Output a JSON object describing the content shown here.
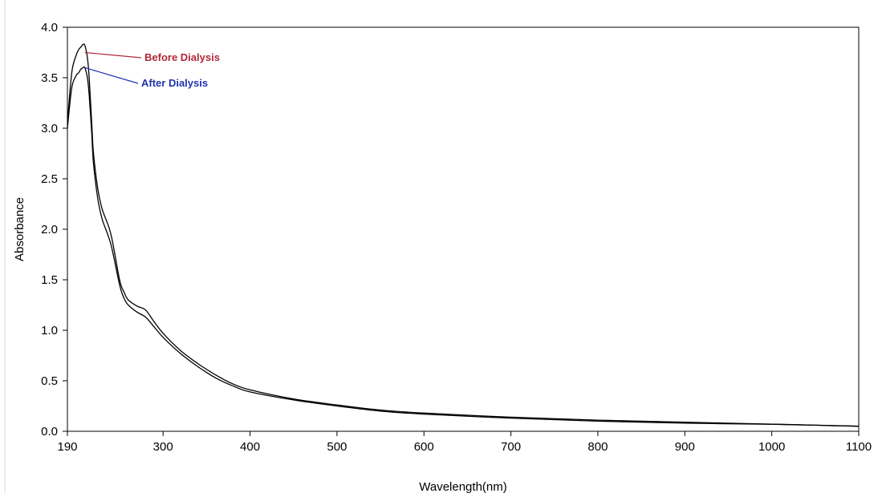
{
  "chart_data": {
    "type": "line",
    "xlabel": "Wavelength(nm)",
    "ylabel": "Absorbance",
    "xlim": [
      190,
      1100
    ],
    "ylim": [
      0.0,
      4.0
    ],
    "x_ticks": [
      190,
      300,
      400,
      500,
      600,
      700,
      800,
      900,
      1000,
      1100
    ],
    "y_ticks": [
      "0.0",
      "0.5",
      "1.0",
      "1.5",
      "2.0",
      "2.5",
      "3.0",
      "3.5",
      "4.0"
    ],
    "grid": false,
    "line_color": "#000000",
    "series": [
      {
        "name": "Before Dialysis",
        "color": "#b0283a",
        "x": [
          190,
          195,
          200,
          203,
          205,
          208,
          210,
          213,
          215,
          218,
          220,
          225,
          230,
          240,
          250,
          255,
          260,
          270,
          280,
          290,
          300,
          320,
          340,
          360,
          380,
          400,
          450,
          500,
          550,
          600,
          700,
          800,
          900,
          1000,
          1050,
          1100
        ],
        "y": [
          3.05,
          3.55,
          3.72,
          3.78,
          3.8,
          3.83,
          3.82,
          3.7,
          3.5,
          3.05,
          2.75,
          2.4,
          2.2,
          1.95,
          1.5,
          1.38,
          1.3,
          1.24,
          1.2,
          1.08,
          0.97,
          0.8,
          0.67,
          0.56,
          0.47,
          0.41,
          0.32,
          0.26,
          0.21,
          0.18,
          0.14,
          0.11,
          0.09,
          0.07,
          0.06,
          0.05
        ]
      },
      {
        "name": "After Dialysis",
        "color": "#1f33b0",
        "x": [
          190,
          195,
          200,
          203,
          205,
          208,
          210,
          213,
          215,
          218,
          220,
          225,
          230,
          240,
          250,
          255,
          260,
          270,
          280,
          290,
          300,
          320,
          340,
          360,
          380,
          400,
          450,
          500,
          550,
          600,
          700,
          800,
          900,
          1000,
          1050,
          1100
        ],
        "y": [
          3.0,
          3.4,
          3.52,
          3.55,
          3.58,
          3.6,
          3.6,
          3.5,
          3.33,
          2.95,
          2.65,
          2.3,
          2.1,
          1.85,
          1.45,
          1.32,
          1.25,
          1.18,
          1.13,
          1.03,
          0.93,
          0.77,
          0.64,
          0.53,
          0.45,
          0.39,
          0.31,
          0.25,
          0.2,
          0.17,
          0.13,
          0.1,
          0.08,
          0.07,
          0.06,
          0.05
        ]
      }
    ],
    "annotations": [
      {
        "text": "Before Dialysis",
        "series": 0,
        "point_x": 210,
        "point_y": 3.75,
        "color": "#b0283a"
      },
      {
        "text": "After Dialysis",
        "series": 1,
        "point_x": 210,
        "point_y": 3.6,
        "color": "#1f33b0"
      }
    ]
  }
}
